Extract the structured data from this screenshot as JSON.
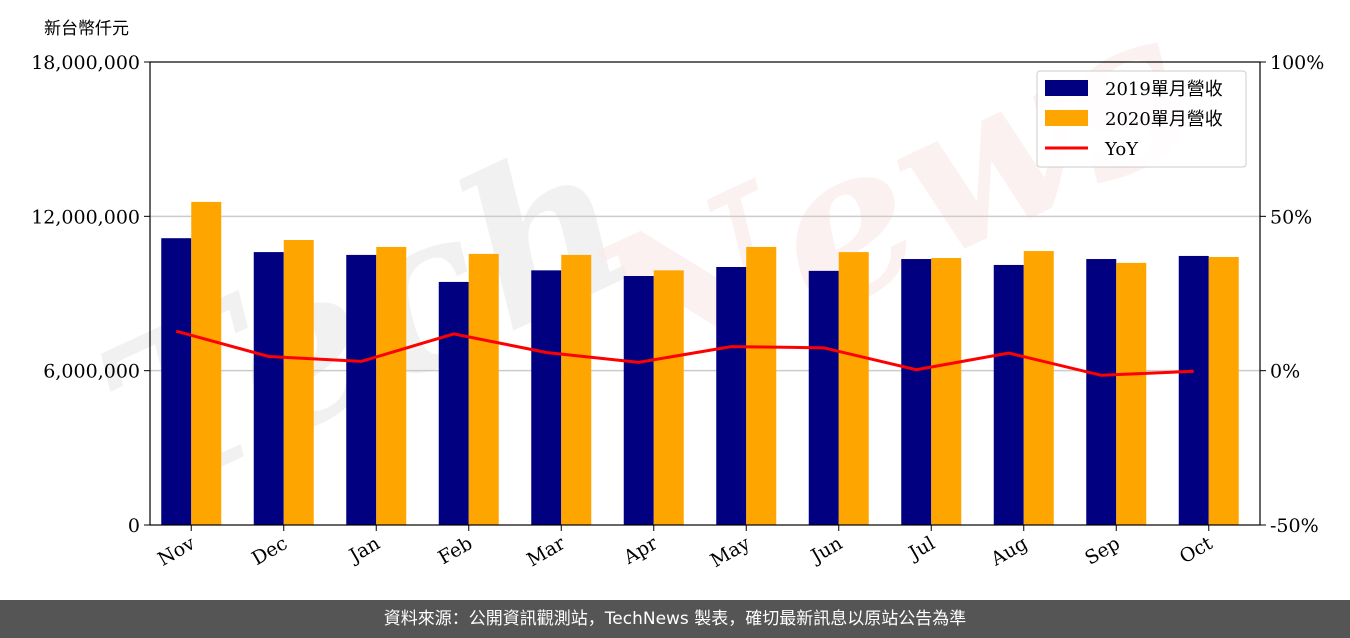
{
  "chart_data": {
    "type": "bar",
    "ylabel": "新台幣仟元",
    "categories": [
      "Nov",
      "Dec",
      "Jan",
      "Feb",
      "Mar",
      "Apr",
      "May",
      "Jun",
      "Jul",
      "Aug",
      "Sep",
      "Oct"
    ],
    "series": [
      {
        "name": "2019單月營收",
        "type": "bar",
        "color": "#000080",
        "values": [
          11150000,
          10610000,
          10500000,
          9450000,
          9900000,
          9680000,
          10030000,
          9880000,
          10340000,
          10110000,
          10340000,
          10460000
        ]
      },
      {
        "name": "2020單月營收",
        "type": "bar",
        "color": "#FFA500",
        "values": [
          12560000,
          11080000,
          10810000,
          10540000,
          10500000,
          9900000,
          10810000,
          10610000,
          10380000,
          10650000,
          10190000,
          10420000
        ]
      },
      {
        "name": "YoY",
        "type": "line",
        "axis": "right",
        "color": "#FF0000",
        "values": [
          12.8,
          4.6,
          3.0,
          11.9,
          5.9,
          2.7,
          7.8,
          7.4,
          0.3,
          5.7,
          -1.5,
          -0.2
        ]
      }
    ],
    "ylim": [
      0,
      18000000
    ],
    "y_ticks": [
      "0",
      "6,000,000",
      "12,000,000",
      "18,000,000"
    ],
    "y2lim": [
      -50,
      100
    ],
    "y2_ticks": [
      "-50%",
      "0%",
      "50%",
      "100%"
    ],
    "grid": "horizontal",
    "legend": "top-right",
    "watermark": "TechNews"
  },
  "footer": {
    "source": "資料來源：公開資訊觀測站，TechNews 製表，確切最新訊息以原站公告為準"
  }
}
